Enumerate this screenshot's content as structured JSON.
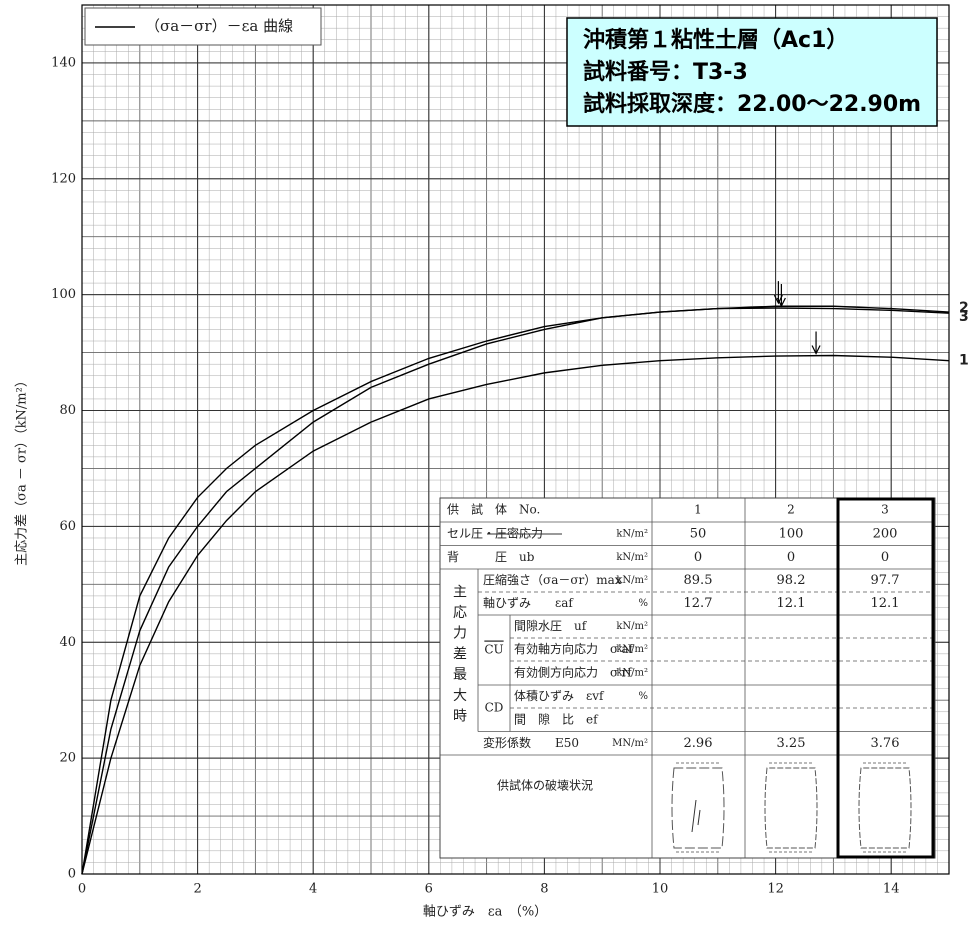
{
  "chart_data": {
    "type": "line",
    "legend_label": "（σa－σr）－εa 曲線",
    "legend_position": "upper left",
    "xlabel": "軸ひずみ　εa　（%）",
    "ylabel": "主応力差（σa － σr）（kN/m²）",
    "xlim": [
      0,
      15
    ],
    "ylim": [
      0,
      150
    ],
    "xticks": [
      0,
      2,
      4,
      6,
      8,
      10,
      12,
      14
    ],
    "yticks": [
      0,
      20,
      40,
      60,
      80,
      100,
      120,
      140
    ],
    "grid": true,
    "minor_grid": {
      "x": 0.2,
      "y": 2
    },
    "x": [
      0,
      0.5,
      1,
      1.5,
      2,
      2.5,
      3,
      4,
      5,
      6,
      7,
      8,
      9,
      10,
      11,
      12,
      13,
      14,
      15
    ],
    "series": [
      {
        "name": "1",
        "color": "#000000",
        "values": [
          0,
          20,
          36,
          47,
          55,
          61,
          66,
          73,
          78,
          82,
          84.5,
          86.5,
          87.8,
          88.6,
          89.1,
          89.4,
          89.5,
          89.2,
          88.6
        ]
      },
      {
        "name": "2",
        "color": "#000000",
        "values": [
          0,
          25,
          42,
          53,
          60,
          66,
          70,
          78,
          84,
          88,
          91.5,
          94,
          96,
          97,
          97.6,
          98,
          98,
          97.6,
          97.0
        ]
      },
      {
        "name": "3",
        "color": "#000000",
        "values": [
          0,
          30,
          48,
          58,
          65,
          70,
          74,
          80,
          85,
          89,
          92,
          94.5,
          96,
          97,
          97.6,
          97.7,
          97.6,
          97.3,
          96.8
        ]
      }
    ]
  },
  "title_box": {
    "lines": [
      "沖積第１粘性土層（Ac1）",
      "試料番号：T3-3",
      "試料採取深度：22.00～22.90m"
    ]
  },
  "table": {
    "header": {
      "label": "供　試　体　No.",
      "cols": [
        "1",
        "2",
        "3"
      ]
    },
    "group_label": "主応力差最大時",
    "cu_label": "CU",
    "cd_label": "CD",
    "rows": [
      {
        "label": "セル圧・圧密応力",
        "unit": "kN/m²",
        "values": [
          50,
          100,
          200
        ]
      },
      {
        "label": "背　　　圧　ub",
        "unit": "kN/m²",
        "values": [
          0,
          0,
          0
        ]
      },
      {
        "label": "圧縮強さ（σa－σr）max",
        "unit": "kN/m²",
        "values": [
          89.5,
          98.2,
          97.7
        ]
      },
      {
        "label": "軸ひずみ　　εaf",
        "unit": "%",
        "values": [
          12.7,
          12.1,
          12.1
        ]
      },
      {
        "label": "間隙水圧　uf",
        "unit": "kN/m²"
      },
      {
        "label": "有効軸方向応力　σ'af",
        "unit": "kN/m²"
      },
      {
        "label": "有効側方向応力　σ'rf",
        "unit": "kN/m²"
      },
      {
        "label": "体積ひずみ　εvf",
        "unit": "%"
      },
      {
        "label": "間　隙　比　ef"
      },
      {
        "label": "変形係数　　E50",
        "unit": "MN/m²",
        "values": [
          2.96,
          3.25,
          3.76
        ]
      },
      {
        "label": "供試体の破壊状況"
      }
    ]
  }
}
